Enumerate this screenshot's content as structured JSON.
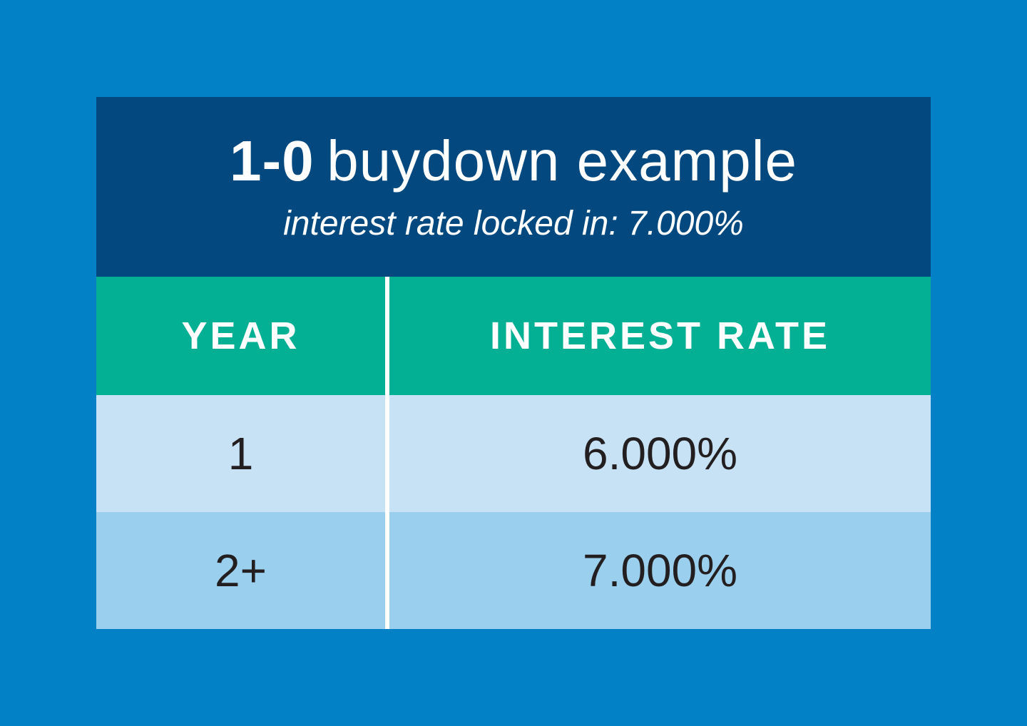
{
  "colors": {
    "background": "#0381C6",
    "header_bg": "#03487F",
    "table_header_bg": "#03B093",
    "row1_bg": "#C6E2F4",
    "row2_bg": "#9AD0ED",
    "divider": "#FFFFFF",
    "title_text": "#FFFFFF",
    "data_text": "#231F20"
  },
  "header": {
    "title_bold": "1-0",
    "title_rest": "buydown example",
    "subtitle": "interest rate locked in: 7.000%"
  },
  "table": {
    "columns": [
      "YEAR",
      "INTEREST RATE"
    ],
    "rows": [
      {
        "year": "1",
        "rate": "6.000%"
      },
      {
        "year": "2+",
        "rate": "7.000%"
      }
    ]
  },
  "chart_data": {
    "type": "table",
    "title": "1-0 buydown example",
    "subtitle": "interest rate locked in: 7.000%",
    "columns": [
      "YEAR",
      "INTEREST RATE"
    ],
    "rows": [
      [
        "1",
        "6.000%"
      ],
      [
        "2+",
        "7.000%"
      ]
    ]
  }
}
